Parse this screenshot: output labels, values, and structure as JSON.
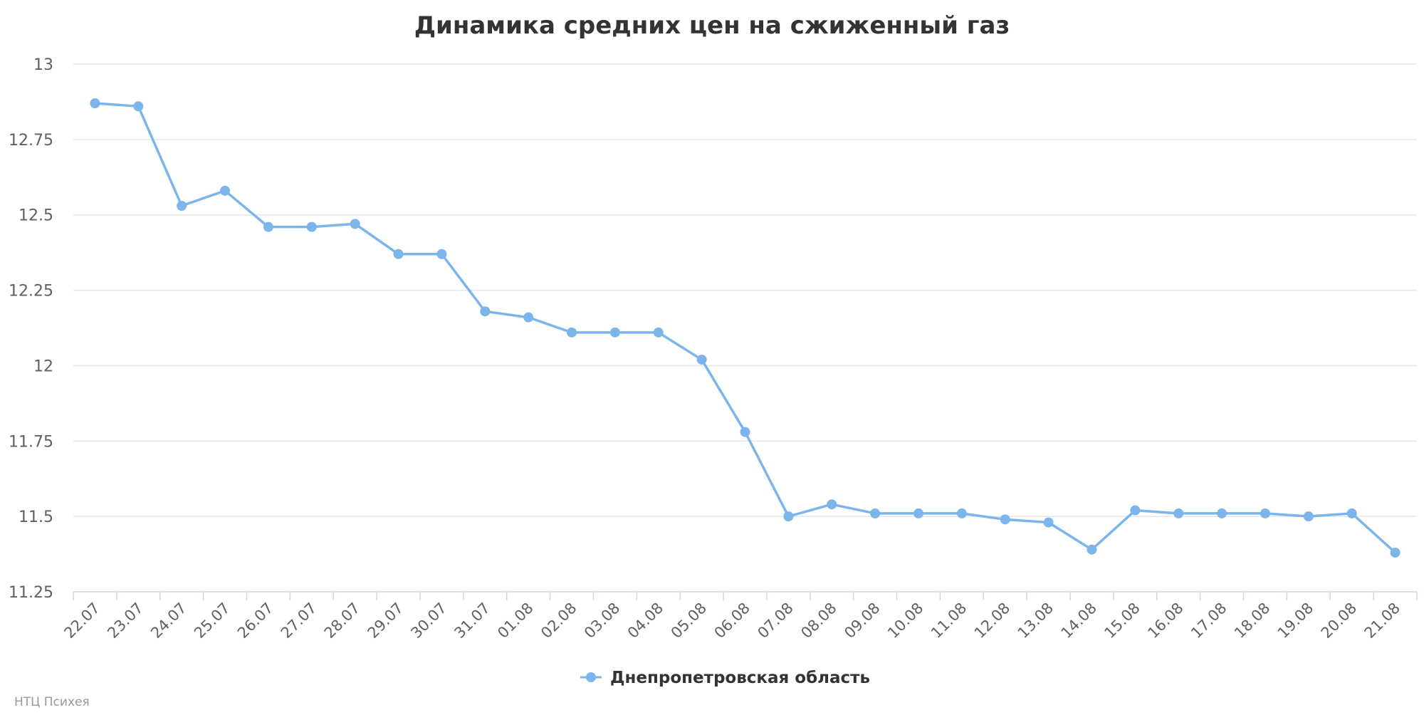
{
  "chart_data": {
    "type": "line",
    "title": "Динамика средних цен на сжиженный газ",
    "xlabel": "",
    "ylabel": "",
    "ylim": [
      11.25,
      13
    ],
    "yticks": [
      "11.25",
      "11.5",
      "11.75",
      "12",
      "12.25",
      "12.5",
      "12.75",
      "13"
    ],
    "grid": true,
    "legend_position": "bottom-center",
    "categories": [
      "22.07",
      "23.07",
      "24.07",
      "25.07",
      "26.07",
      "27.07",
      "28.07",
      "29.07",
      "30.07",
      "31.07",
      "01.08",
      "02.08",
      "03.08",
      "04.08",
      "05.08",
      "06.08",
      "07.08",
      "08.08",
      "09.08",
      "10.08",
      "11.08",
      "12.08",
      "13.08",
      "14.08",
      "15.08",
      "16.08",
      "17.08",
      "18.08",
      "19.08",
      "20.08",
      "21.08"
    ],
    "series": [
      {
        "name": "Днепропетровская область",
        "color": "#7cb5ec",
        "values": [
          12.87,
          12.86,
          12.53,
          12.58,
          12.46,
          12.46,
          12.47,
          12.37,
          12.37,
          12.18,
          12.16,
          12.11,
          12.11,
          12.11,
          12.02,
          11.78,
          11.5,
          11.54,
          11.51,
          11.51,
          11.51,
          11.49,
          11.48,
          11.39,
          11.52,
          11.51,
          11.51,
          11.51,
          11.5,
          11.51,
          11.38
        ]
      }
    ]
  },
  "credit": "НТЦ Психея"
}
